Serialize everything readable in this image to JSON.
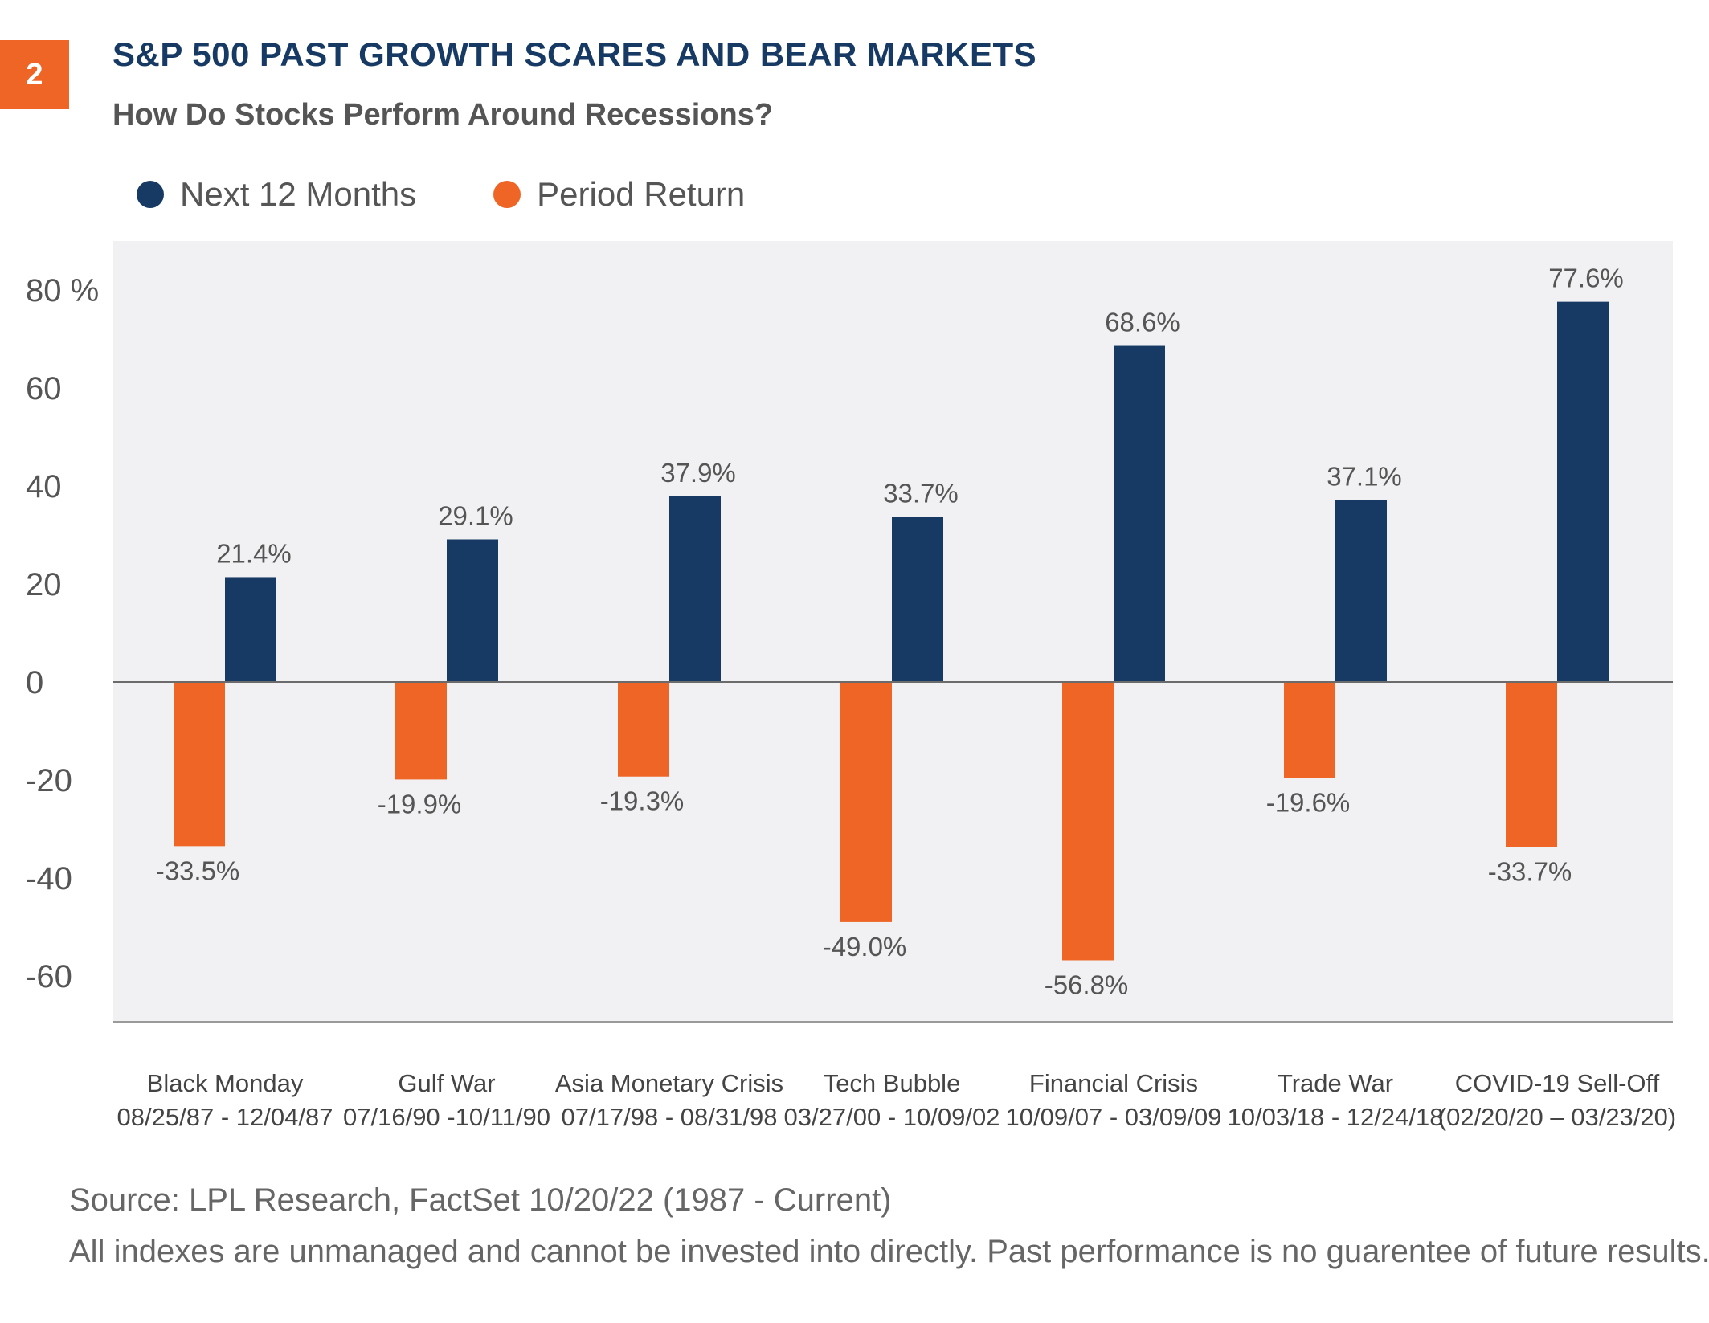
{
  "badge": "2",
  "title": "S&P 500 PAST GROWTH SCARES AND BEAR MARKETS",
  "subtitle": "How Do Stocks Perform Around Recessions?",
  "footer": {
    "source": "Source: LPL Research, FactSet  10/20/22 (1987 - Current)",
    "disclaimer": "All indexes are unmanaged and cannot be invested into directly. Past performance is no guarentee of future results."
  },
  "colors": {
    "navy": "#173a64",
    "orange": "#ee6526",
    "plot_bg": "#f1f1f3",
    "text": "#555555"
  },
  "chart_data": {
    "type": "bar",
    "title": "S&P 500 PAST GROWTH SCARES AND BEAR MARKETS",
    "subtitle": "How Do Stocks Perform Around Recessions?",
    "categories": [
      {
        "name": "Black Monday",
        "dates": "08/25/87 - 12/04/87"
      },
      {
        "name": "Gulf War",
        "dates": "07/16/90 -10/11/90"
      },
      {
        "name": "Asia Monetary Crisis",
        "dates": "07/17/98 - 08/31/98"
      },
      {
        "name": "Tech Bubble",
        "dates": "03/27/00 - 10/09/02"
      },
      {
        "name": "Financial Crisis",
        "dates": "10/09/07 - 03/09/09"
      },
      {
        "name": "Trade War",
        "dates": "10/03/18 - 12/24/18"
      },
      {
        "name": "COVID-19 Sell-Off",
        "dates": "(02/20/20 – 03/23/20)"
      }
    ],
    "series": [
      {
        "name": "Period Return",
        "color": "#ee6526",
        "values": [
          -33.5,
          -19.9,
          -19.3,
          -49.0,
          -56.8,
          -19.6,
          -33.7
        ],
        "labels": [
          "-33.5%",
          "-19.9%",
          "-19.3%",
          "-49.0%",
          "-56.8%",
          "-19.6%",
          "-33.7%"
        ]
      },
      {
        "name": "Next 12 Months",
        "color": "#173a64",
        "values": [
          21.4,
          29.1,
          37.9,
          33.7,
          68.6,
          37.1,
          77.6
        ],
        "labels": [
          "21.4%",
          "29.1%",
          "37.9%",
          "33.7%",
          "68.6%",
          "37.1%",
          "77.6%"
        ]
      }
    ],
    "legend_order": [
      "Next 12 Months",
      "Period Return"
    ],
    "legend_position": "top-left",
    "ylim": [
      -70,
      90
    ],
    "yticks": [
      80,
      60,
      40,
      20,
      0,
      -20,
      -40,
      -60
    ],
    "ytick_labels": [
      "80 %",
      "60",
      "40",
      "20",
      "0",
      "-20",
      "-40",
      "-60"
    ],
    "xlabel": "",
    "ylabel": "",
    "grid": false
  }
}
